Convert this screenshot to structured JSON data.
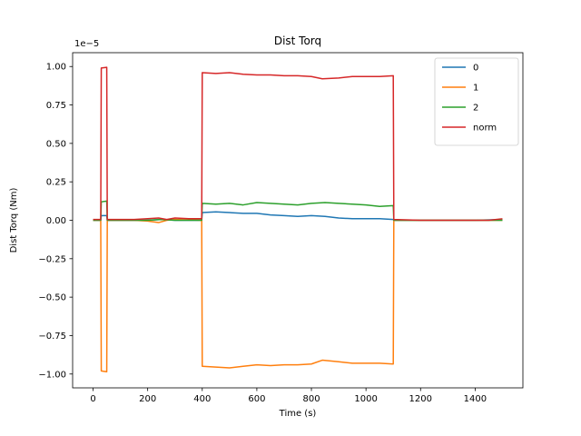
{
  "chart_data": {
    "type": "line",
    "title": "Dist Torq",
    "xlabel": "Time (s)",
    "ylabel": "Dist Torq (Nm)",
    "y_offset_label": "1e−5",
    "xlim": [
      -75,
      1575
    ],
    "ylim": [
      -1.09,
      1.09
    ],
    "xticks": [
      0,
      200,
      400,
      600,
      800,
      1000,
      1200,
      1400
    ],
    "yticks": [
      -1.0,
      -0.75,
      -0.5,
      -0.25,
      0.0,
      0.25,
      0.5,
      0.75,
      1.0
    ],
    "ytick_labels": [
      "−1.00",
      "−0.75",
      "−0.50",
      "−0.25",
      "0.00",
      "0.25",
      "0.50",
      "0.75",
      "1.00"
    ],
    "grid": false,
    "legend_position": "top-right",
    "series": [
      {
        "name": "0",
        "color": "#1f77b4",
        "points": [
          [
            0,
            0.0
          ],
          [
            28,
            0.0
          ],
          [
            30,
            0.03
          ],
          [
            50,
            0.03
          ],
          [
            52,
            0.0
          ],
          [
            100,
            0.0
          ],
          [
            150,
            0.0
          ],
          [
            200,
            0.0
          ],
          [
            250,
            0.005
          ],
          [
            300,
            0.0
          ],
          [
            398,
            0.0
          ],
          [
            400,
            0.05
          ],
          [
            450,
            0.055
          ],
          [
            500,
            0.05
          ],
          [
            550,
            0.045
          ],
          [
            600,
            0.045
          ],
          [
            650,
            0.035
          ],
          [
            700,
            0.03
          ],
          [
            750,
            0.025
          ],
          [
            800,
            0.03
          ],
          [
            850,
            0.025
          ],
          [
            900,
            0.015
          ],
          [
            950,
            0.01
          ],
          [
            1000,
            0.01
          ],
          [
            1050,
            0.01
          ],
          [
            1100,
            0.005
          ],
          [
            1102,
            0.0
          ],
          [
            1200,
            0.0
          ],
          [
            1300,
            0.0
          ],
          [
            1400,
            0.0
          ],
          [
            1500,
            0.005
          ]
        ]
      },
      {
        "name": "1",
        "color": "#ff7f0e",
        "points": [
          [
            0,
            0.0
          ],
          [
            28,
            0.0
          ],
          [
            30,
            -0.98
          ],
          [
            50,
            -0.985
          ],
          [
            52,
            0.0
          ],
          [
            100,
            0.0
          ],
          [
            150,
            0.0
          ],
          [
            200,
            -0.005
          ],
          [
            240,
            -0.015
          ],
          [
            270,
            0.0
          ],
          [
            300,
            0.005
          ],
          [
            398,
            0.0
          ],
          [
            400,
            -0.95
          ],
          [
            450,
            -0.955
          ],
          [
            500,
            -0.96
          ],
          [
            550,
            -0.95
          ],
          [
            600,
            -0.94
          ],
          [
            650,
            -0.945
          ],
          [
            700,
            -0.94
          ],
          [
            750,
            -0.94
          ],
          [
            800,
            -0.935
          ],
          [
            840,
            -0.91
          ],
          [
            900,
            -0.92
          ],
          [
            950,
            -0.93
          ],
          [
            1000,
            -0.93
          ],
          [
            1050,
            -0.93
          ],
          [
            1100,
            -0.935
          ],
          [
            1102,
            0.0
          ],
          [
            1200,
            0.0
          ],
          [
            1300,
            0.0
          ],
          [
            1400,
            0.0
          ],
          [
            1500,
            0.0
          ]
        ]
      },
      {
        "name": "2",
        "color": "#2ca02c",
        "points": [
          [
            0,
            0.0
          ],
          [
            28,
            0.0
          ],
          [
            30,
            0.12
          ],
          [
            50,
            0.125
          ],
          [
            52,
            0.0
          ],
          [
            100,
            0.0
          ],
          [
            150,
            0.0
          ],
          [
            200,
            0.0
          ],
          [
            250,
            0.005
          ],
          [
            300,
            0.0
          ],
          [
            398,
            0.0
          ],
          [
            400,
            0.11
          ],
          [
            450,
            0.105
          ],
          [
            500,
            0.11
          ],
          [
            550,
            0.1
          ],
          [
            600,
            0.115
          ],
          [
            650,
            0.11
          ],
          [
            700,
            0.105
          ],
          [
            750,
            0.1
          ],
          [
            800,
            0.11
          ],
          [
            850,
            0.115
          ],
          [
            900,
            0.11
          ],
          [
            950,
            0.105
          ],
          [
            1000,
            0.1
          ],
          [
            1050,
            0.09
          ],
          [
            1100,
            0.095
          ],
          [
            1102,
            0.0
          ],
          [
            1200,
            0.0
          ],
          [
            1300,
            0.0
          ],
          [
            1400,
            0.0
          ],
          [
            1500,
            0.0
          ]
        ]
      },
      {
        "name": "norm",
        "color": "#d62728",
        "points": [
          [
            0,
            0.005
          ],
          [
            28,
            0.005
          ],
          [
            30,
            0.99
          ],
          [
            50,
            0.995
          ],
          [
            52,
            0.005
          ],
          [
            100,
            0.005
          ],
          [
            150,
            0.005
          ],
          [
            200,
            0.01
          ],
          [
            240,
            0.015
          ],
          [
            270,
            0.005
          ],
          [
            300,
            0.015
          ],
          [
            350,
            0.01
          ],
          [
            398,
            0.01
          ],
          [
            400,
            0.96
          ],
          [
            450,
            0.955
          ],
          [
            500,
            0.96
          ],
          [
            550,
            0.95
          ],
          [
            600,
            0.945
          ],
          [
            650,
            0.945
          ],
          [
            700,
            0.94
          ],
          [
            750,
            0.94
          ],
          [
            800,
            0.935
          ],
          [
            840,
            0.92
          ],
          [
            900,
            0.925
          ],
          [
            950,
            0.935
          ],
          [
            1000,
            0.935
          ],
          [
            1050,
            0.935
          ],
          [
            1100,
            0.94
          ],
          [
            1102,
            0.005
          ],
          [
            1200,
            0.0
          ],
          [
            1300,
            0.0
          ],
          [
            1400,
            0.0
          ],
          [
            1450,
            0.0
          ],
          [
            1500,
            0.01
          ]
        ]
      }
    ]
  }
}
